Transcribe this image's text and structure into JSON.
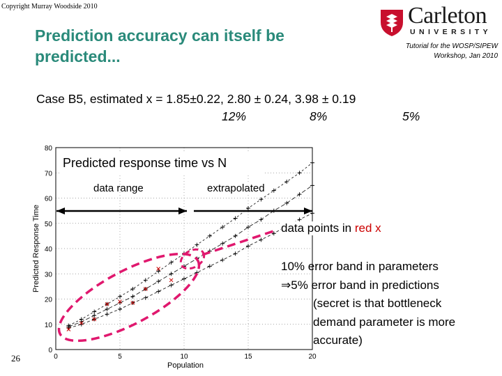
{
  "copyright": "Copyright Murray Woodside 2010",
  "title_line1": "Prediction accuracy can itself be",
  "title_line2": "predicted...",
  "logo": {
    "name": "Carleton",
    "sub": "UNIVERSITY",
    "icon": "shield-icon"
  },
  "tutorial_line1": "Tutorial for the WOSP/SIPEW",
  "tutorial_line2": "Workshop, Jan 2010",
  "case_text": "Case B5, estimated x = 1.85±0.22,   2.80 ± 0.24,   3.98 ±  0.19",
  "pct1": "12%",
  "pct2": "8%",
  "pct3": "5%",
  "slide_number": "26",
  "annotations": {
    "data_range": "data range",
    "extrapolated": "extrapolated",
    "points_prefix": "data points in ",
    "points_red": "red x",
    "band1": "10% error band in parameters",
    "band2": "⇒5% error band in predictions",
    "band3": "(secret is that bottleneck",
    "band4": "demand parameter is more",
    "band5": "accurate)"
  },
  "colors": {
    "title": "#2a8a7a",
    "highlight": "#e0186e",
    "red": "#cc0000"
  },
  "chart_data": {
    "type": "line",
    "title": "Predicted response time vs N",
    "xlabel": "Population",
    "ylabel": "Predicted Response Time",
    "xlim": [
      0,
      20
    ],
    "ylim": [
      0,
      80
    ],
    "xticks": [
      0,
      5,
      10,
      15,
      20
    ],
    "yticks": [
      0,
      10,
      20,
      30,
      40,
      50,
      60,
      70,
      80
    ],
    "grid": true,
    "x": [
      1,
      2,
      3,
      4,
      5,
      6,
      7,
      8,
      9,
      10,
      11,
      12,
      13,
      14,
      15,
      16,
      17,
      18,
      19,
      20
    ],
    "series": [
      {
        "values": [
          8.5,
          10.0,
          12.0,
          14.0,
          16.0,
          18.5,
          20.5,
          23.0,
          25.5,
          28.0,
          30.5,
          33.0,
          35.5,
          38.0,
          41.0,
          43.5,
          46.0,
          49.0,
          51.5,
          54.0
        ]
      },
      {
        "values": [
          9.0,
          11.0,
          13.5,
          16.0,
          18.5,
          21.0,
          24.0,
          27.0,
          30.0,
          33.0,
          36.0,
          39.0,
          42.0,
          45.0,
          48.5,
          51.5,
          55.0,
          58.0,
          61.5,
          65.0
        ]
      },
      {
        "values": [
          9.5,
          12.0,
          15.0,
          18.0,
          21.0,
          24.0,
          27.5,
          31.0,
          34.5,
          38.0,
          41.5,
          45.0,
          48.5,
          52.0,
          56.0,
          59.5,
          63.0,
          66.5,
          70.0,
          74.0
        ]
      }
    ],
    "measured_points": [
      {
        "x": 1,
        "y": 8.0
      },
      {
        "x": 2,
        "y": 10.5
      },
      {
        "x": 3,
        "y": 12.0
      },
      {
        "x": 4,
        "y": 18.0
      },
      {
        "x": 5,
        "y": 19.0
      },
      {
        "x": 6,
        "y": 18.5
      },
      {
        "x": 7,
        "y": 24.0
      },
      {
        "x": 8,
        "y": 32.0
      },
      {
        "x": 9,
        "y": 27.5
      }
    ]
  }
}
